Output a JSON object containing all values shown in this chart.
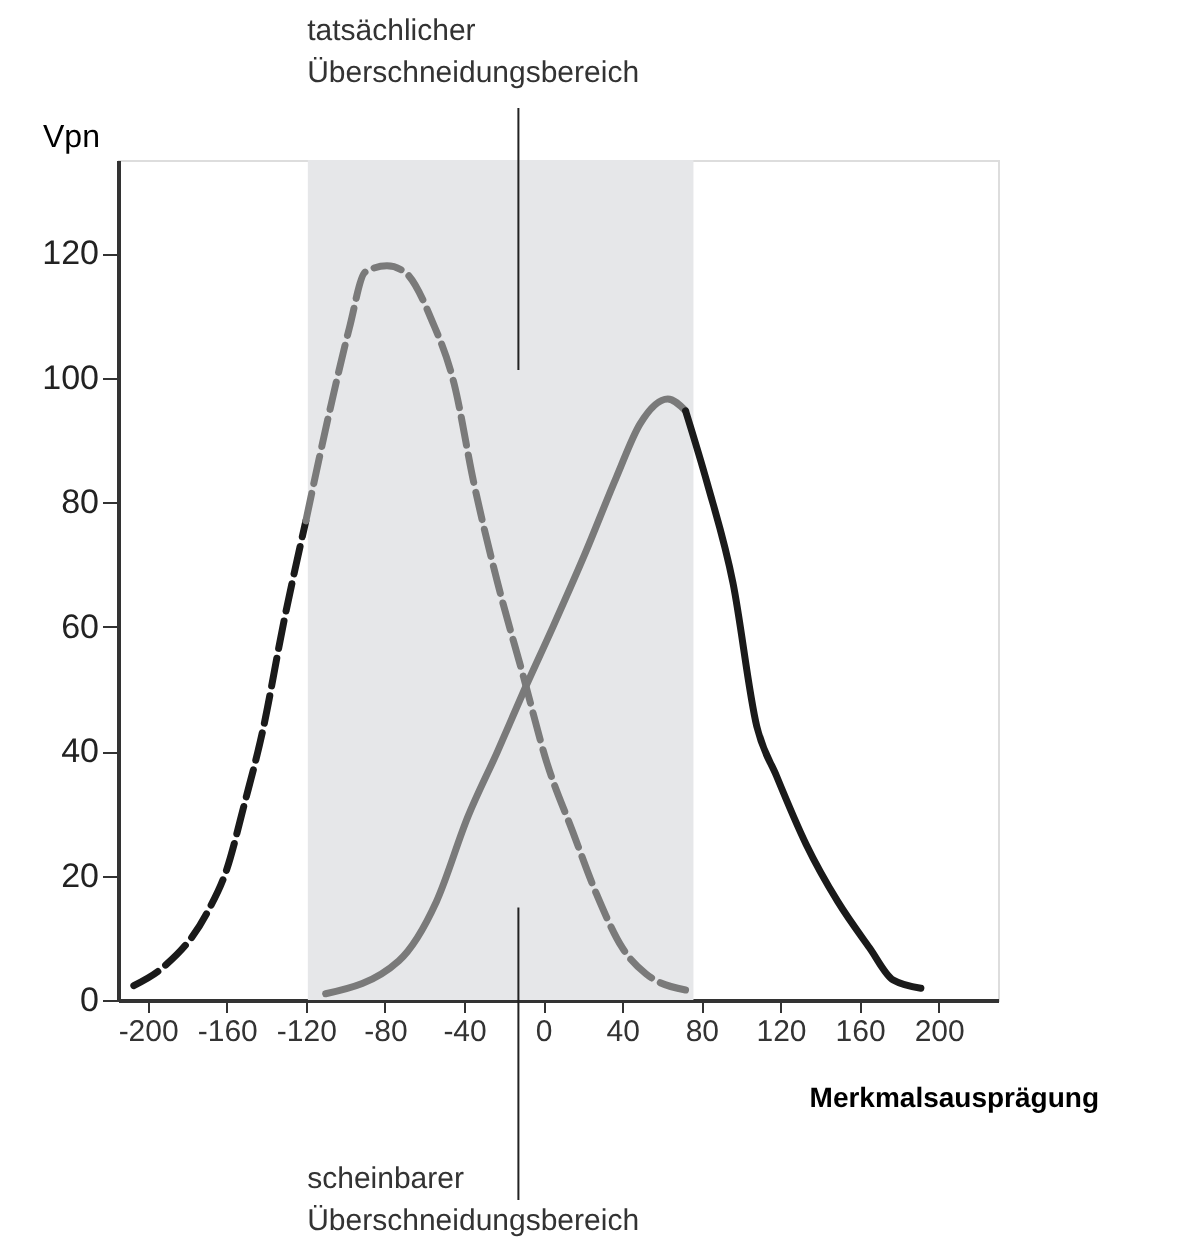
{
  "chart_data": {
    "type": "line",
    "ylabel": "Vpn",
    "xlabel": "Merkmalsausprägung",
    "xlim": [
      -215,
      230
    ],
    "ylim": [
      0,
      135
    ],
    "xticks": [
      -200,
      -160,
      -120,
      -80,
      -40,
      0,
      40,
      80,
      120,
      160,
      200
    ],
    "yticks": [
      0,
      20,
      40,
      60,
      80,
      100,
      120
    ],
    "grid": false,
    "marker": "none",
    "series": [
      {
        "color": "#1a1a1a",
        "line_style": "dashed",
        "x": [
          -207,
          -192,
          -170,
          -160,
          -151,
          -142,
          -131,
          -120
        ],
        "values": [
          2.3,
          5.3,
          14,
          21,
          31.6,
          43,
          61,
          77
        ]
      },
      {
        "color": "#7a7a7a",
        "line_style": "dashed",
        "x": [
          -120,
          -107,
          -98,
          -90,
          -79,
          -70,
          -56,
          -45,
          -35,
          -23,
          -10,
          2,
          15,
          27,
          40,
          52,
          72
        ],
        "values": [
          77,
          96,
          108,
          117,
          118,
          117,
          109,
          99,
          83,
          67,
          52,
          38,
          27,
          17,
          8.4,
          4.2,
          1.6
        ]
      },
      {
        "color": "#7a7a7a",
        "line_style": "solid",
        "x": [
          -110,
          -73,
          -54,
          -38,
          -23,
          -10,
          5,
          21,
          37,
          49,
          63,
          72
        ],
        "values": [
          1,
          6.3,
          15.8,
          29.5,
          40,
          49.5,
          60,
          71.6,
          84,
          92.6,
          96.6,
          94.7
        ]
      },
      {
        "color": "#1a1a1a",
        "line_style": "solid",
        "x": [
          72,
          83,
          96,
          108,
          118,
          133,
          149,
          165,
          177,
          191
        ],
        "values": [
          94.7,
          83,
          67,
          44,
          36,
          25,
          15.8,
          8.4,
          3.2,
          1.9
        ]
      }
    ],
    "bands": [
      {
        "axis": "x",
        "from": -119,
        "to": 76,
        "color": "#e6e7e9"
      }
    ],
    "annotations": [
      "tatsächlicher\nÜberschneidungsbereich",
      "scheinbarer\nÜberschneidungsbereich"
    ]
  }
}
